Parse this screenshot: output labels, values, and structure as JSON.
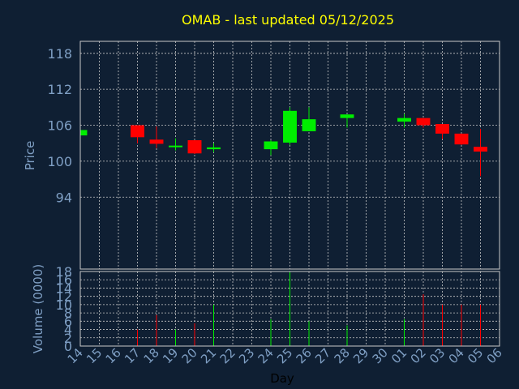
{
  "chart_data": {
    "type": "candlestick",
    "title": "OMAB - last updated 05/12/2025",
    "xlabel": "Day",
    "price_panel": {
      "ylabel": "Price",
      "ylim": [
        82,
        120
      ],
      "yticks": [
        94,
        100,
        106,
        112,
        118
      ],
      "grid": true
    },
    "volume_panel": {
      "ylabel": "Volume (0000)",
      "ylim": [
        0,
        18
      ],
      "yticks": [
        0,
        2,
        4,
        6,
        8,
        10,
        12,
        14,
        16,
        18
      ],
      "grid": true
    },
    "x_ticks": [
      "14",
      "15",
      "16",
      "17",
      "18",
      "19",
      "20",
      "21",
      "22",
      "23",
      "24",
      "25",
      "26",
      "27",
      "28",
      "29",
      "30",
      "01",
      "02",
      "03",
      "04",
      "05",
      "06"
    ],
    "candles": [
      {
        "day": "14",
        "open": 104.3,
        "high": 105.2,
        "low": 104.3,
        "close": 105.2,
        "volume": 0
      },
      {
        "day": "17",
        "open": 106.0,
        "high": 106.0,
        "low": 103.0,
        "close": 104.0,
        "volume": 4
      },
      {
        "day": "18",
        "open": 103.6,
        "high": 105.8,
        "low": 102.2,
        "close": 102.9,
        "volume": 7.5
      },
      {
        "day": "19",
        "open": 102.4,
        "high": 103.8,
        "low": 101.8,
        "close": 102.6,
        "volume": 4
      },
      {
        "day": "20",
        "open": 103.5,
        "high": 103.5,
        "low": 101.2,
        "close": 101.3,
        "volume": 5.5
      },
      {
        "day": "21",
        "open": 102.0,
        "high": 103.0,
        "low": 101.5,
        "close": 102.3,
        "volume": 10
      },
      {
        "day": "24",
        "open": 102.0,
        "high": 103.5,
        "low": 101.0,
        "close": 103.3,
        "volume": 6.5
      },
      {
        "day": "25",
        "open": 103.1,
        "high": 109.0,
        "low": 102.7,
        "close": 108.4,
        "volume": 17.8
      },
      {
        "day": "26",
        "open": 105.0,
        "high": 109.0,
        "low": 105.0,
        "close": 107.0,
        "volume": 6
      },
      {
        "day": "28",
        "open": 107.2,
        "high": 107.8,
        "low": 105.6,
        "close": 107.8,
        "volume": 5
      },
      {
        "day": "01",
        "open": 106.6,
        "high": 107.9,
        "low": 105.6,
        "close": 107.2,
        "volume": 6.5
      },
      {
        "day": "02",
        "open": 107.2,
        "high": 107.2,
        "low": 105.6,
        "close": 106.0,
        "volume": 12.5
      },
      {
        "day": "03",
        "open": 106.2,
        "high": 106.2,
        "low": 103.7,
        "close": 104.6,
        "volume": 10
      },
      {
        "day": "04",
        "open": 104.6,
        "high": 104.6,
        "low": 102.7,
        "close": 102.8,
        "volume": 10
      },
      {
        "day": "05",
        "open": 102.4,
        "high": 105.4,
        "low": 97.5,
        "close": 101.6,
        "volume": 10
      }
    ],
    "colors": {
      "background": "#0f1f33",
      "grid": "#c8c8c8",
      "up": "#00ee00",
      "down": "#ff0000",
      "title": "#ffff00",
      "axis_text": "#7f9fc4",
      "xlabel": "#000000"
    }
  }
}
